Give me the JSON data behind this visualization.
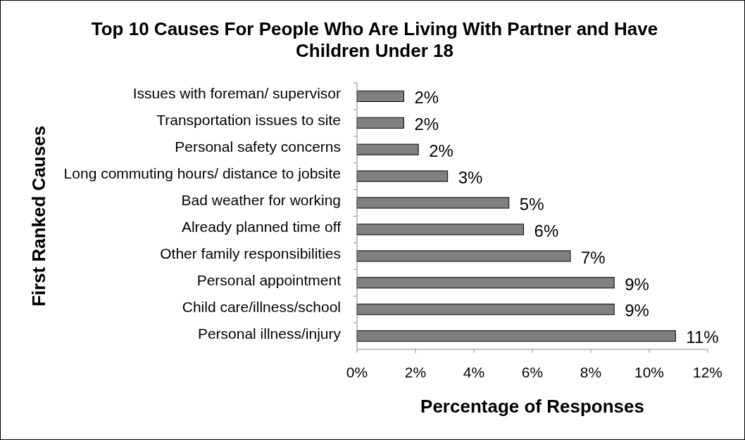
{
  "chart_data": {
    "type": "bar",
    "orientation": "horizontal",
    "title": "Top 10 Causes For People Who Are Living With Partner and Have Children Under 18",
    "xlabel": "Percentage of Responses",
    "ylabel": "First Ranked Causes",
    "categories": [
      "Issues with foreman/ supervisor",
      "Transportation issues to site",
      "Personal safety concerns",
      "Long commuting hours/ distance to jobsite",
      "Bad weather for working",
      "Already planned time off",
      "Other family responsibilities",
      "Personal appointment",
      "Child care/illness/school",
      "Personal illness/injury"
    ],
    "values": [
      1.6,
      1.6,
      2.1,
      3.1,
      5.2,
      5.7,
      7.3,
      8.8,
      8.8,
      10.9
    ],
    "value_labels": [
      "2%",
      "2%",
      "2%",
      "3%",
      "5%",
      "6%",
      "7%",
      "9%",
      "9%",
      "11%"
    ],
    "color": "#808080",
    "xlim": [
      0,
      12
    ],
    "xticks": [
      {
        "value": 0,
        "label": "0%"
      },
      {
        "value": 2,
        "label": "2%"
      },
      {
        "value": 4,
        "label": "4%"
      },
      {
        "value": 6,
        "label": "6%"
      },
      {
        "value": 8,
        "label": "8%"
      },
      {
        "value": 10,
        "label": "10%"
      },
      {
        "value": 12,
        "label": "12%"
      }
    ],
    "grid": false
  }
}
